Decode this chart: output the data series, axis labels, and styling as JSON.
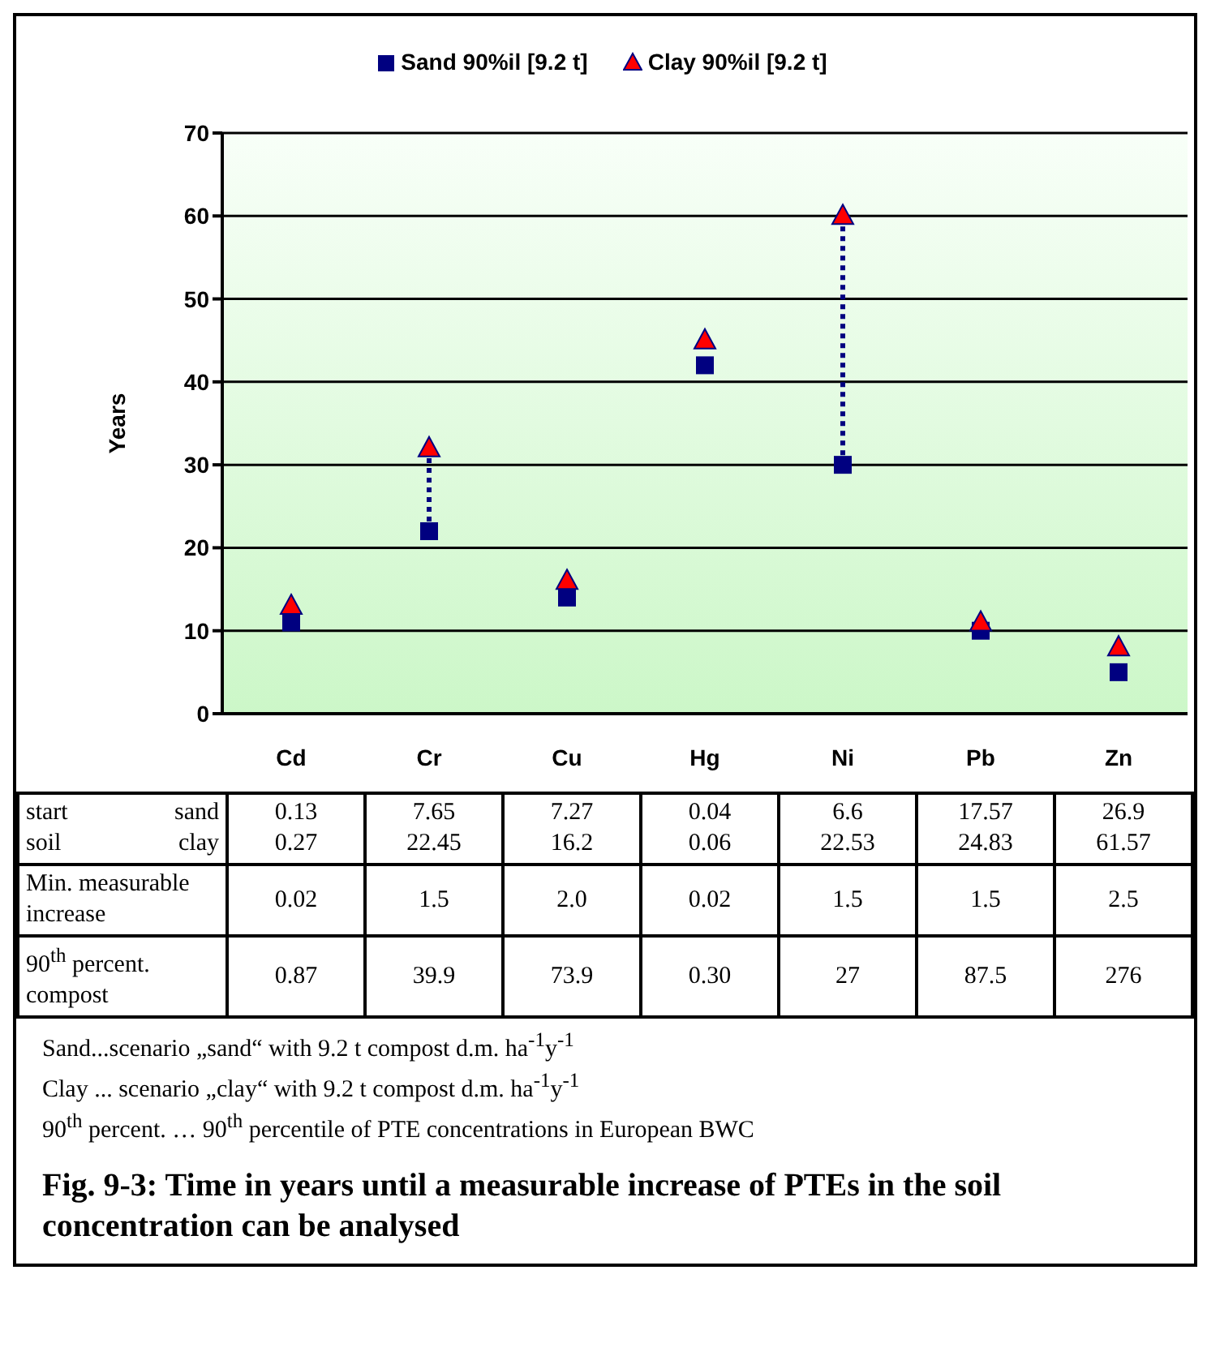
{
  "chart_data": {
    "type": "scatter",
    "title": "Fig. 9-3:  Time in years until a measurable increase of PTEs in the soil concentration can be analysed",
    "ylabel": "Years",
    "categories": [
      "Cd",
      "Cr",
      "Cu",
      "Hg",
      "Ni",
      "Pb",
      "Zn"
    ],
    "series": [
      {
        "name": "Sand 90%il [9.2 t]",
        "color": "#000080",
        "marker": "square",
        "values": [
          11,
          22,
          14,
          42,
          30,
          10,
          5
        ]
      },
      {
        "name": "Clay 90%il [9.2 t]",
        "color": "#ff0000",
        "marker": "triangle",
        "values": [
          13,
          32,
          16,
          45,
          60,
          11,
          8
        ]
      },
      {
        "type": "line",
        "x": [
          "Cr",
          "Cr"
        ],
        "values": [
          22,
          32
        ],
        "color": "#000080",
        "line_style": "dotted"
      },
      {
        "type": "line",
        "x": [
          "Ni",
          "Ni"
        ],
        "values": [
          30,
          60
        ],
        "color": "#000080",
        "line_style": "dotted"
      }
    ],
    "ylim": [
      0,
      70
    ],
    "yticks": [
      0,
      10,
      20,
      30,
      40,
      50,
      60,
      70
    ],
    "grid": "y",
    "legend": "top",
    "annotations": [
      "start",
      "sand",
      "soil",
      "clay",
      "0.13",
      "7.65",
      "7.27",
      "0.04",
      "6.6",
      "17.57",
      "26.9",
      "0.27",
      "22.45",
      "16.2",
      "0.06",
      "22.53",
      "24.83",
      "61.57",
      "Min. measurable increase",
      "0.02",
      "1.5",
      "2.0",
      "0.02",
      "1.5",
      "1.5",
      "2.5",
      "90$^{th}$ percent. compost",
      "0.87",
      "39.9",
      "73.9",
      "0.30",
      "27",
      "87.5",
      "276",
      "Sand...scenario „sand“ with 9.2 t compost d.m. ha$^{-1}$y$^{-1}$",
      "Clay ... scenario „clay“ with 9.2 t compost d.m. ha$^{-1}$y$^{-1}$",
      "90$^{th}$ percent. … 90$^{th}$ percentile of PTE concentrations in European BWC"
    ]
  }
}
